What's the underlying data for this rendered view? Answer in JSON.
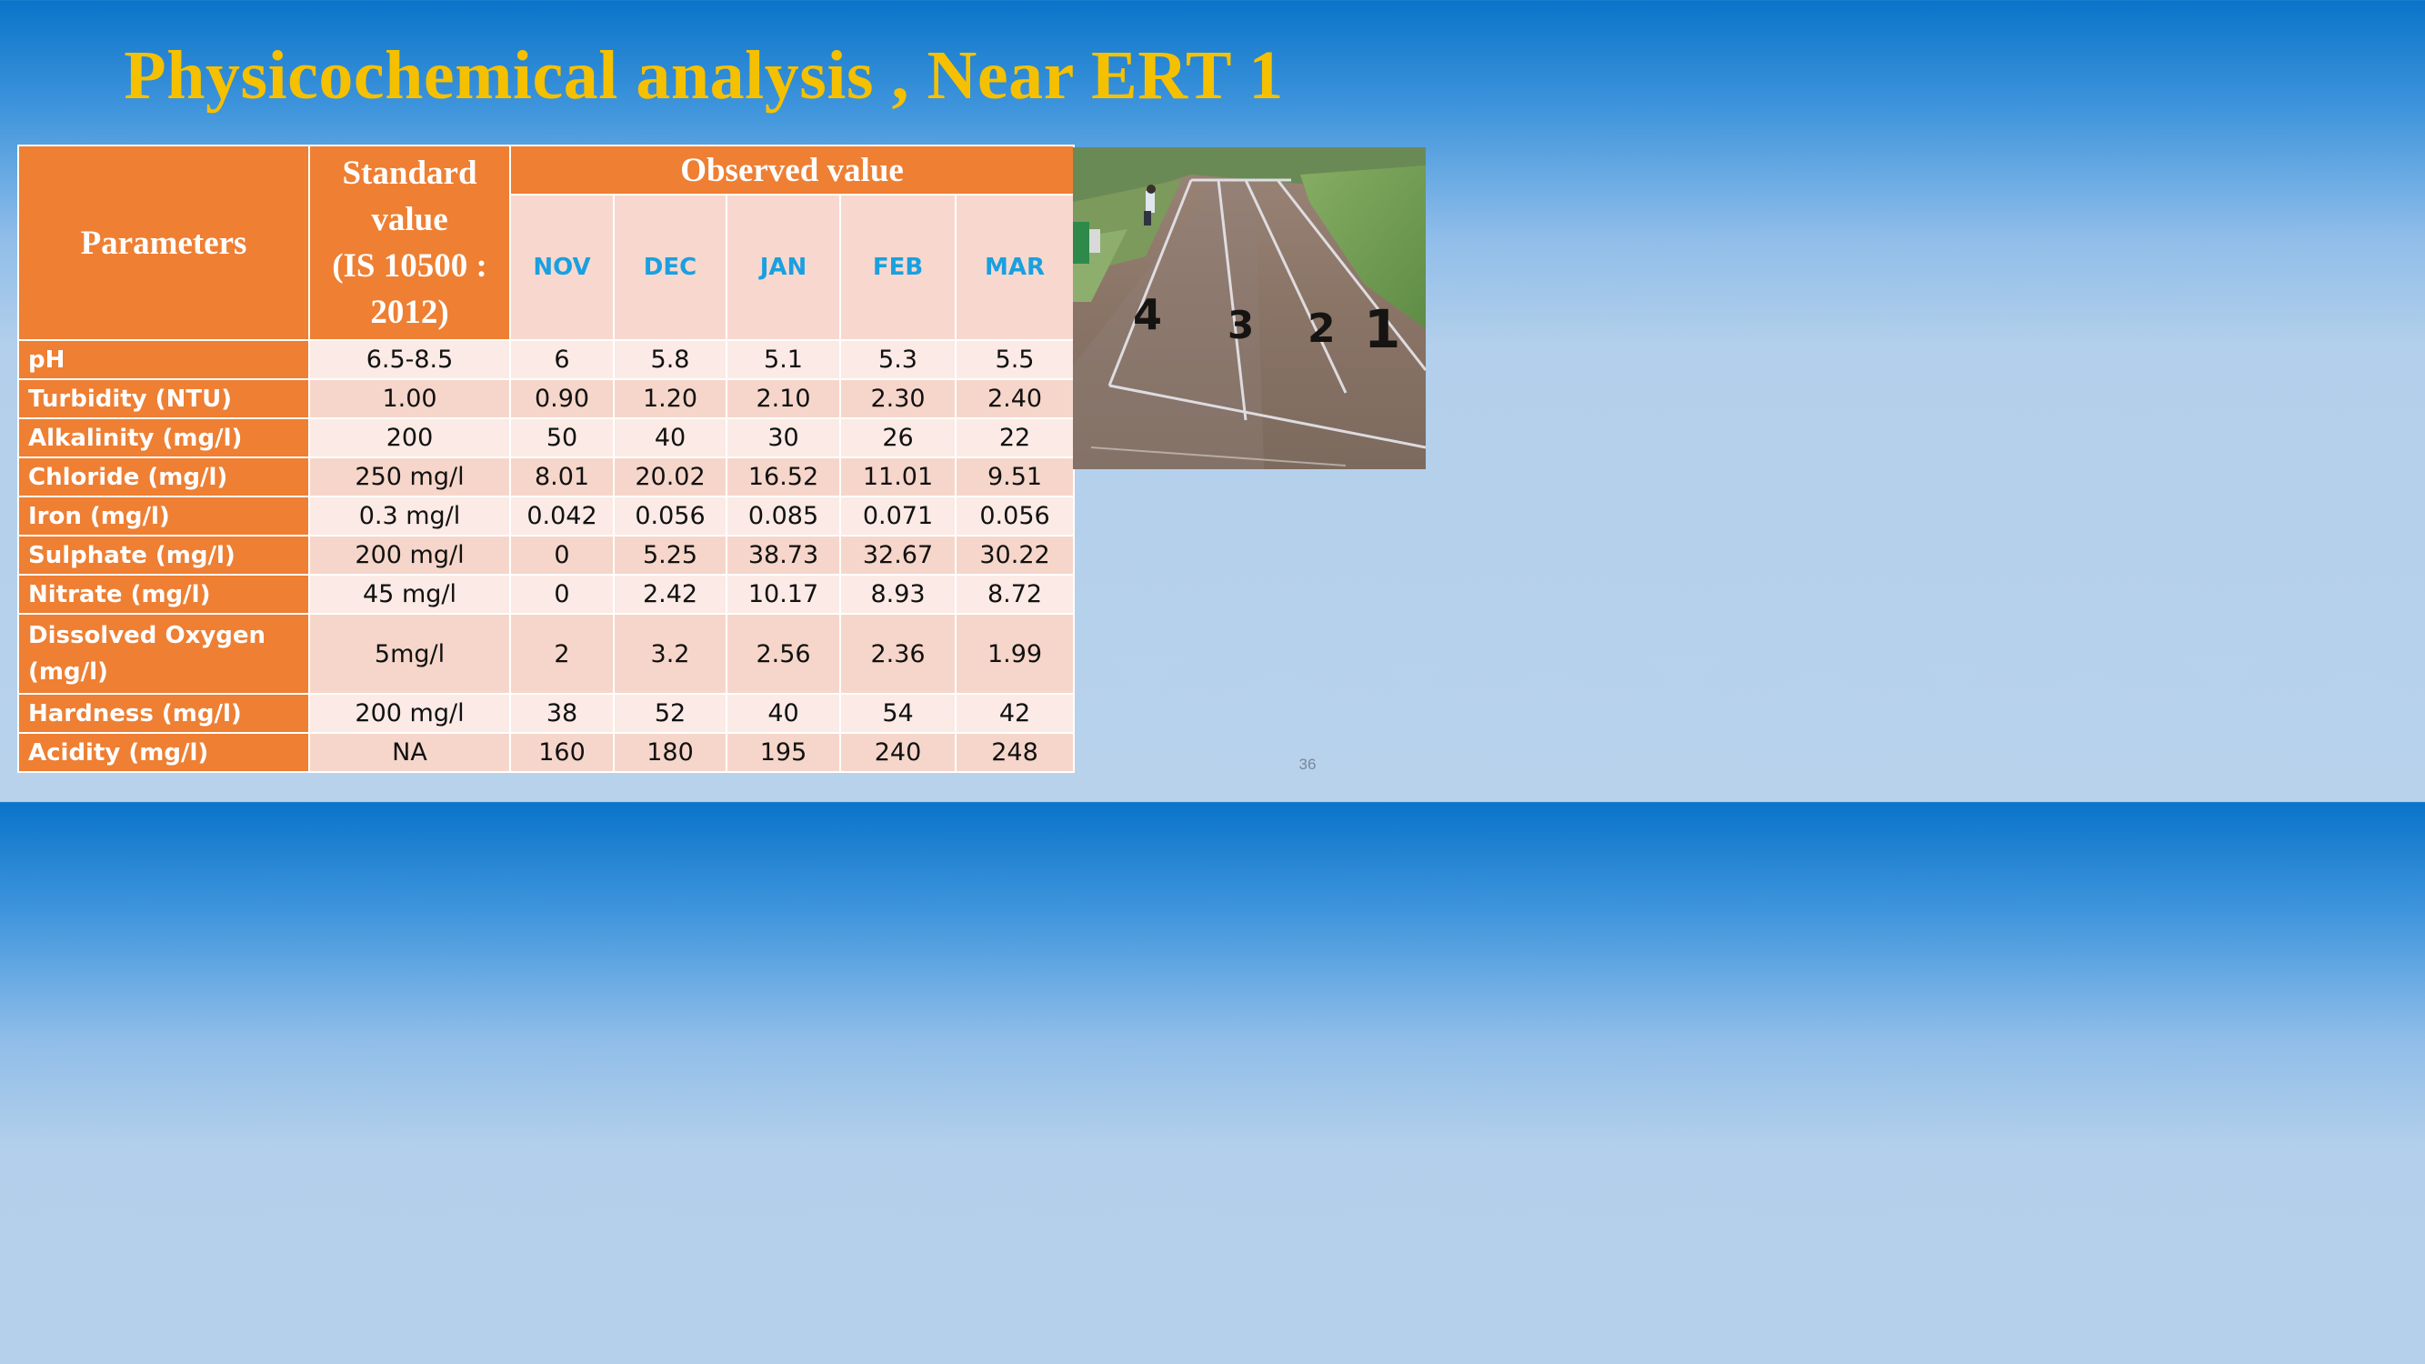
{
  "slide": {
    "title": "Physicochemical analysis , Near ERT 1",
    "page_number": "36"
  },
  "table": {
    "header": {
      "parameters": "Parameters",
      "standard_lines": [
        "Standard",
        "value",
        "(IS 10500 :",
        "2012)"
      ],
      "observed": "Observed value",
      "months": [
        "NOV",
        "DEC",
        "JAN",
        "FEB",
        "MAR"
      ]
    },
    "rows": [
      {
        "param_lines": [
          "pH"
        ],
        "standard": "6.5-8.5",
        "values": [
          "6",
          "5.8",
          "5.1",
          "5.3",
          "5.5"
        ]
      },
      {
        "param_lines": [
          "Turbidity (NTU)"
        ],
        "standard": "1.00",
        "values": [
          "0.90",
          "1.20",
          "2.10",
          "2.30",
          "2.40"
        ]
      },
      {
        "param_lines": [
          "Alkalinity (mg/l)"
        ],
        "standard": "200",
        "values": [
          "50",
          "40",
          "30",
          "26",
          "22"
        ]
      },
      {
        "param_lines": [
          "Chloride (mg/l)"
        ],
        "standard": "250 mg/l",
        "values": [
          "8.01",
          "20.02",
          "16.52",
          "11.01",
          "9.51"
        ]
      },
      {
        "param_lines": [
          "Iron (mg/l)"
        ],
        "standard": "0.3 mg/l",
        "values": [
          "0.042",
          "0.056",
          "0.085",
          "0.071",
          "0.056"
        ]
      },
      {
        "param_lines": [
          "Sulphate (mg/l)"
        ],
        "standard": "200 mg/l",
        "values": [
          "0",
          "5.25",
          "38.73",
          "32.67",
          "30.22"
        ]
      },
      {
        "param_lines": [
          "Nitrate (mg/l)"
        ],
        "standard": "45 mg/l",
        "values": [
          "0",
          "2.42",
          "10.17",
          "8.93",
          "8.72"
        ]
      },
      {
        "param_lines": [
          "Dissolved Oxygen",
          "(mg/l)"
        ],
        "standard": "5mg/l",
        "values": [
          "2",
          "3.2",
          "2.56",
          "2.36",
          "1.99"
        ]
      },
      {
        "param_lines": [
          "Hardness (mg/l)"
        ],
        "standard": "200 mg/l",
        "values": [
          "38",
          "52",
          "40",
          "54",
          "42"
        ]
      },
      {
        "param_lines": [
          "Acidity (mg/l)"
        ],
        "standard": "NA",
        "values": [
          "160",
          "180",
          "195",
          "240",
          "248"
        ]
      }
    ]
  },
  "photo": {
    "plot_labels": [
      "4",
      "3",
      "2",
      "1"
    ],
    "colors": {
      "soil": "#8a7466",
      "grass": "#6f9a55"
    }
  }
}
